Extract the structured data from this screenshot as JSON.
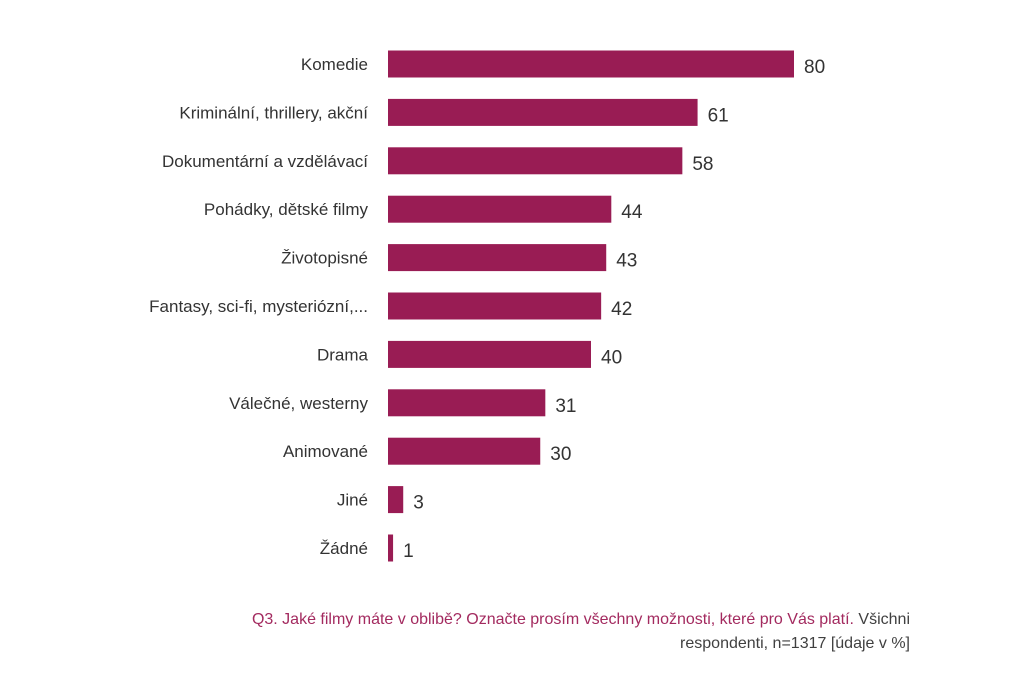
{
  "chart_data": {
    "type": "bar",
    "orientation": "horizontal",
    "categories": [
      "Komedie",
      "Kriminální, thrillery, akční",
      "Dokumentární a vzdělávací",
      "Pohádky, dětské filmy",
      "Životopisné",
      "Fantasy, sci-fi, mysteriózní,...",
      "Drama",
      "Válečné, westerny",
      "Animované",
      "Jiné",
      "Žádné"
    ],
    "values": [
      80,
      61,
      58,
      44,
      43,
      42,
      40,
      31,
      30,
      3,
      1
    ],
    "xlim": [
      0,
      80
    ],
    "grid": false,
    "unit": "%",
    "bar_color": "#991c54"
  },
  "footer": {
    "question": "Q3. Jaké filmy máte v oblibě? Označte prosím všechny možnosti, které pro Vás platí.",
    "note": "Všichni respondenti, n=1317 [údaje v %]"
  }
}
